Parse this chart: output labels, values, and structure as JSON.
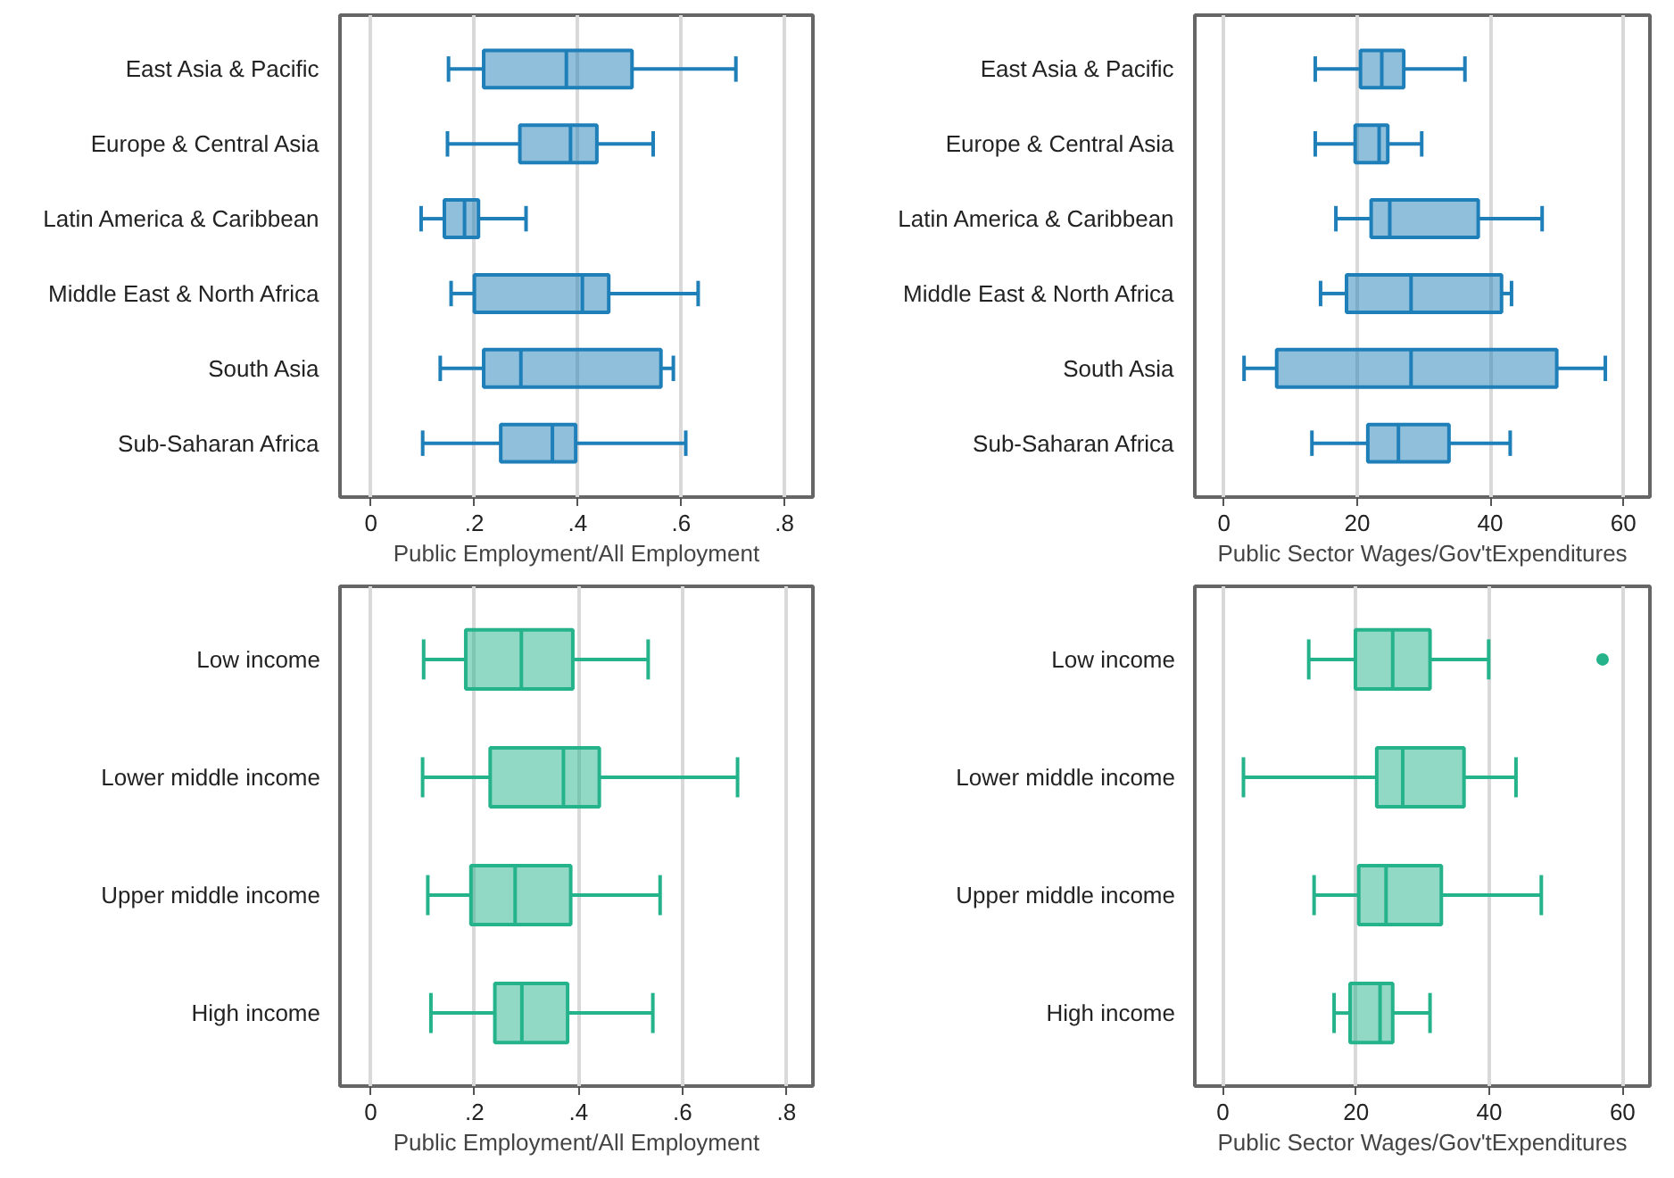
{
  "chart_data": [
    {
      "type": "box",
      "orientation": "horizontal",
      "categories": [
        "East Asia & Pacific",
        "Europe & Central Asia",
        "Latin America & Caribbean",
        "Middle East & North Africa",
        "South Asia",
        "Sub-Saharan Africa"
      ],
      "xlabel": "Public Employment/All Employment",
      "xlim": [
        -0.06,
        0.855
      ],
      "xticks": [
        0,
        {
          "value": 0.2,
          "label": ".2"
        },
        {
          "value": 0.4,
          "label": ".4"
        },
        {
          "value": 0.6,
          "label": ".6"
        },
        {
          "value": 0.8,
          "label": ".8"
        }
      ],
      "grid": "x",
      "series": [
        {
          "color": "#1f7fb8",
          "boxes": [
            {
              "low": 0.15,
              "q1": 0.218,
              "median": 0.378,
              "q3": 0.505,
              "high": 0.706
            },
            {
              "low": 0.148,
              "q1": 0.288,
              "median": 0.386,
              "q3": 0.437,
              "high": 0.546
            },
            {
              "low": 0.097,
              "q1": 0.142,
              "median": 0.181,
              "q3": 0.208,
              "high": 0.3
            },
            {
              "low": 0.155,
              "q1": 0.2,
              "median": 0.409,
              "q3": 0.46,
              "high": 0.633
            },
            {
              "low": 0.134,
              "q1": 0.218,
              "median": 0.29,
              "q3": 0.561,
              "high": 0.585
            },
            {
              "low": 0.1,
              "q1": 0.251,
              "median": 0.351,
              "q3": 0.396,
              "high": 0.609
            }
          ]
        }
      ]
    },
    {
      "type": "box",
      "orientation": "horizontal",
      "categories": [
        "East Asia & Pacific",
        "Europe & Central Asia",
        "Latin America & Caribbean",
        "Middle East & North Africa",
        "South Asia",
        "Sub-Saharan Africa"
      ],
      "xlabel": "Public Sector Wages/Gov'tExpenditures",
      "xlim": [
        -4.4,
        64
      ],
      "xticks": [
        0,
        20,
        40,
        60
      ],
      "grid": "x",
      "series": [
        {
          "color": "#1f7fb8",
          "boxes": [
            {
              "low": 13.7,
              "q1": 20.5,
              "median": 23.7,
              "q3": 27.0,
              "high": 36.2
            },
            {
              "low": 13.7,
              "q1": 19.7,
              "median": 23.3,
              "q3": 24.6,
              "high": 29.7
            },
            {
              "low": 16.8,
              "q1": 22.1,
              "median": 24.9,
              "q3": 38.2,
              "high": 47.8
            },
            {
              "low": 14.5,
              "q1": 18.4,
              "median": 28.1,
              "q3": 41.7,
              "high": 43.2
            },
            {
              "low": 3.0,
              "q1": 7.9,
              "median": 28.1,
              "q3": 50.0,
              "high": 57.3
            },
            {
              "low": 13.2,
              "q1": 21.6,
              "median": 26.2,
              "q3": 33.8,
              "high": 43.0
            }
          ]
        }
      ]
    },
    {
      "type": "box",
      "orientation": "horizontal",
      "categories": [
        "Low income",
        "Lower middle income",
        "Upper middle income",
        "High income"
      ],
      "xlabel": "Public Employment/All Employment",
      "xlim": [
        -0.059,
        0.851
      ],
      "xticks": [
        0,
        {
          "value": 0.2,
          "label": ".2"
        },
        {
          "value": 0.4,
          "label": ".4"
        },
        {
          "value": 0.6,
          "label": ".6"
        },
        {
          "value": 0.8,
          "label": ".8"
        }
      ],
      "grid": "x",
      "series": [
        {
          "color": "#25b38c",
          "boxes": [
            {
              "low": 0.102,
              "q1": 0.183,
              "median": 0.29,
              "q3": 0.389,
              "high": 0.534
            },
            {
              "low": 0.1,
              "q1": 0.23,
              "median": 0.371,
              "q3": 0.44,
              "high": 0.706
            },
            {
              "low": 0.11,
              "q1": 0.193,
              "median": 0.278,
              "q3": 0.385,
              "high": 0.557
            },
            {
              "low": 0.116,
              "q1": 0.239,
              "median": 0.291,
              "q3": 0.379,
              "high": 0.543
            }
          ]
        }
      ]
    },
    {
      "type": "box",
      "orientation": "horizontal",
      "categories": [
        "Low income",
        "Lower middle income",
        "Upper middle income",
        "High income"
      ],
      "xlabel": "Public Sector Wages/Gov'tExpenditures",
      "xlim": [
        -4.2,
        64.1
      ],
      "xticks": [
        0,
        20,
        40,
        60
      ],
      "grid": "x",
      "series": [
        {
          "color": "#25b38c",
          "boxes": [
            {
              "low": 12.9,
              "q1": 19.9,
              "median": 25.5,
              "q3": 31.1,
              "high": 39.9,
              "outliers": [
                57.0
              ]
            },
            {
              "low": 3.1,
              "q1": 23.1,
              "median": 27.0,
              "q3": 36.2,
              "high": 44.0
            },
            {
              "low": 13.7,
              "q1": 20.4,
              "median": 24.5,
              "q3": 32.8,
              "high": 47.8
            },
            {
              "low": 16.7,
              "q1": 19.1,
              "median": 23.6,
              "q3": 25.5,
              "high": 31.1
            }
          ]
        }
      ]
    }
  ]
}
